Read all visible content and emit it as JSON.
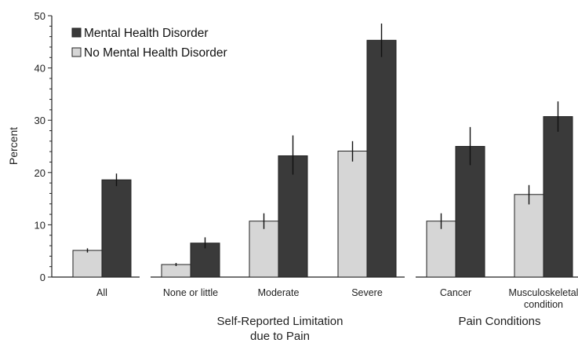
{
  "chart_data": {
    "type": "bar",
    "ylabel": "Percent",
    "ylim": [
      0,
      50
    ],
    "yticks": [
      "0",
      "10",
      "20",
      "30",
      "40",
      "50"
    ],
    "legend_position": "top-left",
    "colors": {
      "mental": "#3a3a3a",
      "no_mental": "#d6d6d6",
      "stroke": "#222222"
    },
    "categories": [
      "All",
      "None or little",
      "Moderate",
      "Severe",
      "Cancer",
      "Musculoskeletal condition"
    ],
    "category_lines": [
      [
        "All"
      ],
      [
        "None or little"
      ],
      [
        "Moderate"
      ],
      [
        "Severe"
      ],
      [
        "Cancer"
      ],
      [
        "Musculoskeletal",
        "condition"
      ]
    ],
    "series": [
      {
        "name": "No Mental Health Disorder",
        "values": [
          5.1,
          2.4,
          10.7,
          24.1,
          10.7,
          15.8
        ],
        "err_low": [
          4.7,
          2.1,
          9.2,
          22.1,
          9.2,
          13.9
        ],
        "err_high": [
          5.5,
          2.7,
          12.2,
          26.0,
          12.2,
          17.6
        ]
      },
      {
        "name": "Mental Health Disorder",
        "values": [
          18.6,
          6.5,
          23.2,
          45.3,
          25.0,
          30.7
        ],
        "err_low": [
          17.4,
          5.5,
          19.6,
          42.1,
          21.4,
          27.8
        ],
        "err_high": [
          19.8,
          7.6,
          27.1,
          48.5,
          28.7,
          33.6
        ]
      }
    ],
    "group_labels": [
      {
        "lines": [
          "Self-Reported Limitation",
          "due to Pain"
        ],
        "categories": [
          "None or little",
          "Moderate",
          "Severe"
        ]
      },
      {
        "lines": [
          "Pain Conditions"
        ],
        "categories": [
          "Cancer",
          "Musculoskeletal condition"
        ]
      }
    ]
  }
}
